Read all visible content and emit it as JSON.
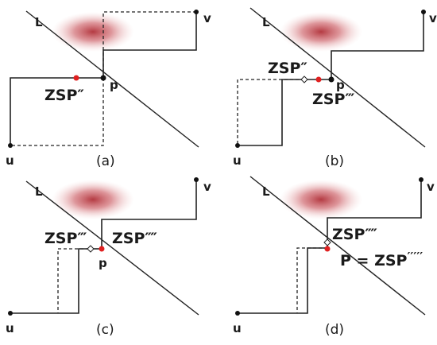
{
  "panels": [
    {
      "id": "a",
      "caption": "(a)",
      "line_label": "L",
      "labels": {
        "u": "u",
        "v": "v",
        "p": "p",
        "zsp": "ZSP″"
      }
    },
    {
      "id": "b",
      "caption": "(b)",
      "line_label": "L",
      "labels": {
        "u": "u",
        "v": "v",
        "p": "p",
        "zsp_upper": "ZSP″",
        "zsp_lower": "ZSP‴"
      }
    },
    {
      "id": "c",
      "caption": "(c)",
      "line_label": "L",
      "labels": {
        "u": "u",
        "v": "v",
        "p": "p",
        "zsp_left": "ZSP‴",
        "zsp_right": "ZSP⁗"
      }
    },
    {
      "id": "d",
      "caption": "(d)",
      "line_label": "L",
      "labels": {
        "u": "u",
        "v": "v",
        "zsp_upper": "ZSP⁗",
        "p_eq": "P = ZSP",
        "p_eq_sup": "′′′′′"
      }
    }
  ],
  "colors": {
    "obstacle": "#b03038",
    "point_red": "#e02020",
    "line": "#222222"
  }
}
